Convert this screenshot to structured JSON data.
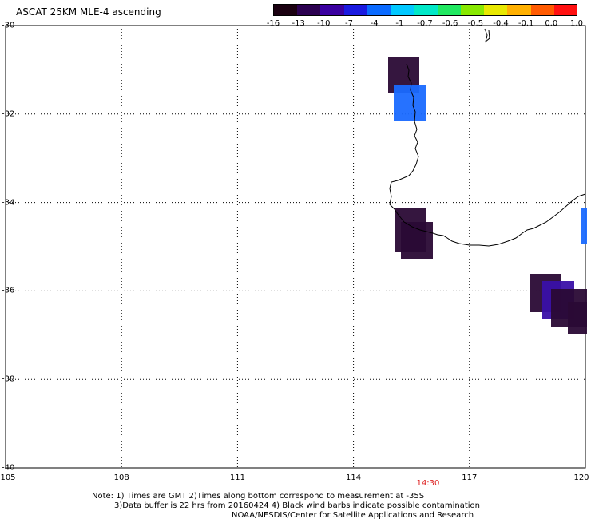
{
  "title": "ASCAT 25KM MLE-4 ascending",
  "colorbar": {
    "labels": [
      "-16",
      "-13",
      "-10",
      "-7",
      "-4",
      "-1",
      "-0.7",
      "-0.6",
      "-0.5",
      "-0.4",
      "-0.1",
      "0.0",
      "1.0"
    ],
    "colors": [
      "#1a0010",
      "#2b0050",
      "#3a00a0",
      "#1a1ae0",
      "#0a6aff",
      "#00c8ff",
      "#00e8c8",
      "#20e860",
      "#88e800",
      "#e8e800",
      "#ffb000",
      "#ff5a00",
      "#ff1010"
    ]
  },
  "axes": {
    "lat_labels": [
      "-30",
      "-32",
      "-34",
      "-36",
      "-38",
      "-40"
    ],
    "lon_labels": [
      "105",
      "108",
      "111",
      "114",
      "117",
      "120"
    ]
  },
  "time_label": "14:30",
  "notes": {
    "line1": "Note: 1) Times are GMT 2)Times along bottom correspond to measurement at -35S",
    "line2": "3)Data buffer is 22 hrs from 20160424 4) Black wind barbs indicate possible contamination",
    "line3": "NOAA/NESDIS/Center for Satellite Applications and Research"
  },
  "data_color_names": {
    "dark": "#2a0a35",
    "blue": "#1a6aff",
    "purple": "#3a10a8"
  }
}
